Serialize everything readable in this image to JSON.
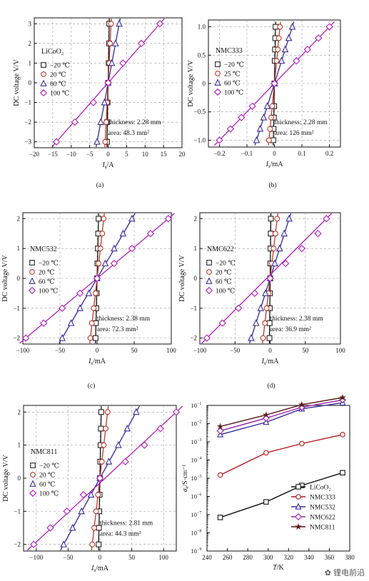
{
  "chart_data": [
    {
      "type": "scatter",
      "panel_label": "(a)",
      "material": "LiCoO2",
      "material_display": "LiCoO₂",
      "xlabel_sym": "I",
      "xlabel_sub": "s",
      "xlabel_unit": "/A",
      "ylabel": "DC voltage V/V",
      "xlim": [
        -20,
        20
      ],
      "ylim": [
        -3.3,
        3.3
      ],
      "xticks": [
        -20,
        -15,
        -10,
        -5,
        0,
        5,
        10,
        15,
        20
      ],
      "yticks": [
        -3,
        -2,
        -1,
        0,
        1,
        2,
        3
      ],
      "annotation": [
        "thickness: 2.28 mm",
        "area: 48.3 mm²"
      ],
      "series": [
        {
          "name": "−20 ℃",
          "marker": "square",
          "color": "#222222",
          "x": [
            -0.3,
            -0.25,
            -0.15,
            0,
            0.15,
            0.25,
            0.3
          ],
          "y": [
            -3,
            -2,
            -1,
            0,
            1,
            2,
            3
          ]
        },
        {
          "name": "20 ℃",
          "marker": "circle",
          "color": "#c0392b",
          "x": [
            -0.8,
            -0.5,
            -0.3,
            0,
            0.3,
            0.5,
            0.8
          ],
          "y": [
            -3,
            -2,
            -1,
            0,
            1,
            2,
            3
          ]
        },
        {
          "name": "60 ℃",
          "marker": "triangle",
          "color": "#3a2d9e",
          "x": [
            -3,
            -2,
            -1,
            0,
            1,
            2,
            3
          ],
          "y": [
            -3,
            -2,
            -1,
            0,
            1,
            2,
            3
          ]
        },
        {
          "name": "100 ℃",
          "marker": "diamond",
          "color": "#b01fb8",
          "x": [
            -14,
            -9,
            -4,
            0,
            4,
            9,
            14
          ],
          "y": [
            -3,
            -2,
            -1,
            0,
            1,
            2,
            3
          ]
        }
      ]
    },
    {
      "type": "scatter",
      "panel_label": "(b)",
      "material": "NMC333",
      "material_display": "NMC333",
      "xlabel_sym": "I",
      "xlabel_sub": "s",
      "xlabel_unit": "/mA",
      "ylabel": "DC voltage V/V",
      "xlim": [
        -0.24,
        0.24
      ],
      "ylim": [
        -1.12,
        1.12
      ],
      "xticks": [
        -0.2,
        -0.1,
        0,
        0.1,
        0.2
      ],
      "yticks": [
        -1.0,
        -0.5,
        0,
        0.5,
        1.0
      ],
      "annotation": [
        "thickness: 2.28 mm",
        "area: 126 mm²"
      ],
      "series": [
        {
          "name": "−20 ℃",
          "marker": "square",
          "color": "#222222",
          "x": [
            -0.004,
            -0.003,
            -0.002,
            -0.001,
            0,
            0.001,
            0.002,
            0.003,
            0.004
          ],
          "y": [
            -1,
            -0.8,
            -0.6,
            -0.4,
            0,
            0.4,
            0.6,
            0.8,
            1
          ]
        },
        {
          "name": "25 ℃",
          "marker": "circle",
          "color": "#c0392b",
          "x": [
            -0.02,
            -0.016,
            -0.012,
            -0.008,
            0,
            0.008,
            0.012,
            0.016,
            0.02
          ],
          "y": [
            -1,
            -0.8,
            -0.6,
            -0.4,
            0,
            0.4,
            0.6,
            0.8,
            1
          ]
        },
        {
          "name": "60 ℃",
          "marker": "triangle",
          "color": "#3a2d9e",
          "x": [
            -0.065,
            -0.052,
            -0.039,
            -0.026,
            0,
            0.026,
            0.039,
            0.052,
            0.065
          ],
          "y": [
            -1,
            -0.8,
            -0.6,
            -0.4,
            0,
            0.4,
            0.6,
            0.8,
            1
          ]
        },
        {
          "name": "100 ℃",
          "marker": "diamond",
          "color": "#b01fb8",
          "x": [
            -0.2,
            -0.16,
            -0.12,
            -0.08,
            0,
            0.08,
            0.12,
            0.16,
            0.2
          ],
          "y": [
            -1,
            -0.8,
            -0.6,
            -0.4,
            0,
            0.4,
            0.6,
            0.8,
            1
          ]
        }
      ]
    },
    {
      "type": "scatter",
      "panel_label": "(c)",
      "material": "NMC532",
      "material_display": "NMC532",
      "xlabel_sym": "I",
      "xlabel_sub": "s",
      "xlabel_unit": "/mA",
      "ylabel": "DC voltage V/V",
      "xlim": [
        -100,
        100
      ],
      "ylim": [
        -2.2,
        2.2
      ],
      "xticks": [
        -100,
        -50,
        0,
        50,
        100
      ],
      "yticks": [
        -2,
        -1,
        0,
        1,
        2
      ],
      "annotation": [
        "thickness: 2.38 mm",
        "area: 72.3 mm²"
      ],
      "series": [
        {
          "name": "−20 ℃",
          "marker": "square",
          "color": "#222222",
          "x": [
            -2,
            -1.5,
            -1,
            -0.5,
            0,
            0.5,
            1,
            1.5,
            2
          ],
          "y": [
            -2,
            -1.5,
            -1,
            -0.5,
            0,
            0.5,
            1,
            1.5,
            2
          ]
        },
        {
          "name": "20 ℃",
          "marker": "circle",
          "color": "#c0392b",
          "x": [
            -9,
            -7,
            -4.5,
            -2,
            0,
            2,
            4.5,
            7,
            9
          ],
          "y": [
            -2,
            -1.5,
            -1,
            -0.5,
            0,
            0.5,
            1,
            1.5,
            2
          ]
        },
        {
          "name": "60 ℃",
          "marker": "triangle",
          "color": "#3a2d9e",
          "x": [
            -47,
            -35,
            -23,
            -11,
            0,
            11,
            23,
            35,
            47
          ],
          "y": [
            -2,
            -1.5,
            -1,
            -0.5,
            0,
            0.5,
            1,
            1.5,
            2
          ]
        },
        {
          "name": "100 ℃",
          "marker": "diamond",
          "color": "#b01fb8",
          "x": [
            -96,
            -72,
            -47,
            -23,
            0,
            23,
            47,
            72,
            96
          ],
          "y": [
            -2,
            -1.5,
            -1,
            -0.5,
            0,
            0.5,
            1,
            1.5,
            2
          ]
        }
      ]
    },
    {
      "type": "scatter",
      "panel_label": "(d)",
      "material": "NMC622",
      "material_display": "NMC622",
      "xlabel_sym": "I",
      "xlabel_sub": "s",
      "xlabel_unit": "/mA",
      "ylabel": "DC voltage V/V",
      "xlim": [
        -100,
        100
      ],
      "ylim": [
        -2.2,
        2.2
      ],
      "xticks": [
        -100,
        -50,
        0,
        50,
        100
      ],
      "yticks": [
        -2,
        -1,
        0,
        1,
        2
      ],
      "annotation": [
        "thickness: 2.38 mm",
        "area: 36.9 mm²"
      ],
      "series": [
        {
          "name": "−20 ℃",
          "marker": "square",
          "color": "#222222",
          "x": [
            -1,
            -0.75,
            -0.5,
            -0.25,
            0,
            0.25,
            0.5,
            0.75,
            1
          ],
          "y": [
            -2,
            -1.5,
            -1,
            -0.5,
            0,
            0.5,
            1,
            1.5,
            2
          ]
        },
        {
          "name": "20 ℃",
          "marker": "circle",
          "color": "#c0392b",
          "x": [
            -10,
            -7.5,
            -5,
            -2.5,
            0,
            2.5,
            5,
            7.5,
            10
          ],
          "y": [
            -2,
            -1.5,
            -1,
            -0.5,
            0,
            0.5,
            1,
            1.5,
            2
          ]
        },
        {
          "name": "60 ℃",
          "marker": "triangle",
          "color": "#3a2d9e",
          "x": [
            -27,
            -20,
            -13.5,
            -6.7,
            0,
            6.7,
            13.5,
            20,
            27
          ],
          "y": [
            -2,
            -1.5,
            -1,
            -0.5,
            0,
            0.5,
            1,
            1.5,
            2
          ]
        },
        {
          "name": "100 ℃",
          "marker": "diamond",
          "color": "#b01fb8",
          "x": [
            -90,
            -68,
            -45,
            -22,
            0,
            22,
            45,
            68,
            80
          ],
          "y": [
            -2,
            -1.5,
            -1,
            -0.5,
            0,
            0.5,
            1,
            1.5,
            2
          ]
        }
      ]
    },
    {
      "type": "scatter",
      "panel_label": "",
      "material": "NMC811",
      "material_display": "NMC811",
      "xlabel_sym": "I",
      "xlabel_sub": "s",
      "xlabel_unit": "/mA",
      "ylabel": "DC voltage V/V",
      "xlim": [
        -120,
        120
      ],
      "ylim": [
        -2.2,
        2.2
      ],
      "xticks": [
        -100,
        -50,
        0,
        50,
        100
      ],
      "yticks": [
        -2,
        -1,
        0,
        1,
        2
      ],
      "annotation": [
        "thickness: 2.81 mm",
        "area: 44.3 mm²"
      ],
      "series": [
        {
          "name": "−20 ℃",
          "marker": "square",
          "color": "#222222",
          "x": [
            -2,
            -1.5,
            -1,
            -0.5,
            0,
            0.5,
            1,
            1.5,
            2
          ],
          "y": [
            -2,
            -1.5,
            -1,
            -0.5,
            0,
            0.5,
            1,
            1.5,
            2
          ]
        },
        {
          "name": "20 ℃",
          "marker": "circle",
          "color": "#c0392b",
          "x": [
            -12,
            -9,
            -6,
            -3,
            0,
            3,
            6,
            9,
            12
          ],
          "y": [
            -2,
            -1.5,
            -1,
            -0.5,
            0,
            0.5,
            1,
            1.5,
            2
          ]
        },
        {
          "name": "60 ℃",
          "marker": "triangle",
          "color": "#3a2d9e",
          "x": [
            -57,
            -43,
            -29,
            -14,
            0,
            14,
            29,
            43,
            57
          ],
          "y": [
            -2,
            -1.5,
            -1,
            -0.5,
            0,
            0.5,
            1,
            1.5,
            2
          ]
        },
        {
          "name": "100 ℃",
          "marker": "diamond",
          "color": "#b01fb8",
          "x": [
            -104,
            -78,
            -52,
            -26,
            0,
            40,
            70,
            95,
            120
          ],
          "y": [
            -2,
            -1.5,
            -1,
            -0.5,
            0,
            0.5,
            1,
            1.5,
            2
          ]
        }
      ]
    },
    {
      "type": "line",
      "panel_label": "",
      "xlabel": "T/K",
      "ylabel": "σe/S·cm⁻¹",
      "ylabel_sym": "σ",
      "ylabel_sub": "e",
      "ylabel_unit": "/S·cm⁻¹",
      "yscale": "log",
      "xlim": [
        240,
        380
      ],
      "ylim_exp": [
        -9,
        -1
      ],
      "xticks": [
        240,
        260,
        280,
        300,
        320,
        340,
        360,
        380
      ],
      "yticks_exp": [
        -9,
        -8,
        -7,
        -6,
        -5,
        -4,
        -3,
        -2,
        -1
      ],
      "legend_position": "bottom-right",
      "series": [
        {
          "name": "LiCoO₂",
          "marker": "square",
          "color": "#111111",
          "x": [
            253,
            298,
            333,
            373
          ],
          "y": [
            7e-08,
            5e-07,
            4e-06,
            2e-05
          ]
        },
        {
          "name": "NMC333",
          "marker": "circle",
          "color": "#b11a1a",
          "x": [
            253,
            298,
            333,
            373
          ],
          "y": [
            1.5e-05,
            0.00025,
            0.0008,
            0.0025
          ]
        },
        {
          "name": "NMC532",
          "marker": "triangle",
          "color": "#3a2d9e",
          "x": [
            253,
            298,
            333,
            373
          ],
          "y": [
            0.0025,
            0.012,
            0.065,
            0.14
          ]
        },
        {
          "name": "NMC622",
          "marker": "diamond",
          "color": "#9b1fa8",
          "x": [
            253,
            298,
            333,
            373
          ],
          "y": [
            0.004,
            0.02,
            0.08,
            0.2
          ]
        },
        {
          "name": "NMC811",
          "marker": "star",
          "color": "#5a1a1a",
          "x": [
            253,
            298,
            333,
            373
          ],
          "y": [
            0.007,
            0.03,
            0.11,
            0.27
          ]
        }
      ]
    }
  ],
  "watermark": "锂电前沿"
}
